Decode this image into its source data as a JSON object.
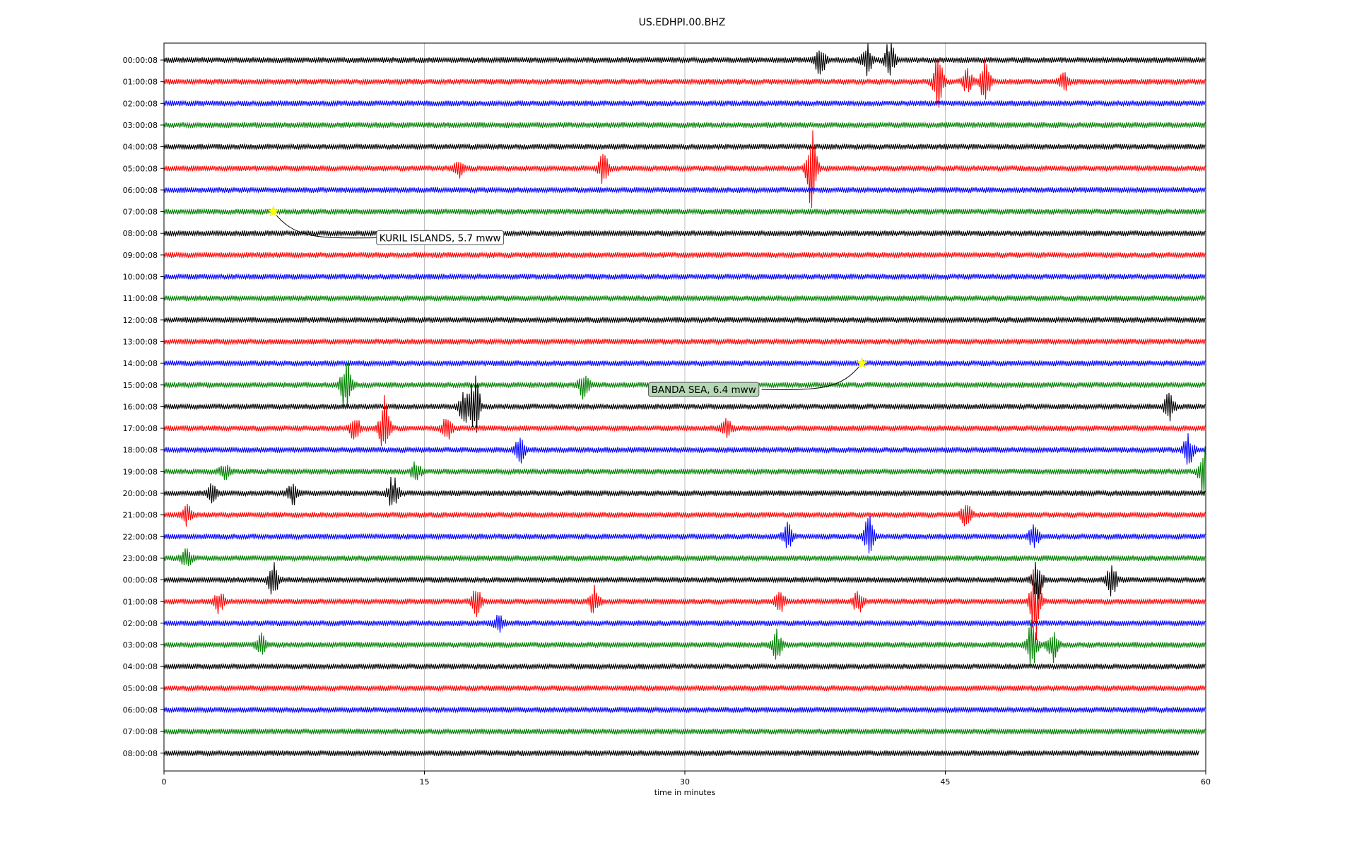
{
  "chart_data": {
    "type": "line",
    "title": "US.EDHPI.00.BHZ",
    "xlabel": "time in minutes",
    "ylabel": "",
    "xlim": [
      0,
      60
    ],
    "x_ticks": [
      "0",
      "15",
      "30",
      "45",
      "60"
    ],
    "grid": "vertical gridlines at x ticks",
    "trace_colors": [
      "#000000",
      "#ff0000",
      "#0000ff",
      "#008000"
    ],
    "star_color": "#ffff00",
    "row_labels": [
      "00:00:08",
      "01:00:08",
      "02:00:08",
      "03:00:08",
      "04:00:08",
      "05:00:08",
      "06:00:08",
      "07:00:08",
      "08:00:08",
      "09:00:08",
      "10:00:08",
      "11:00:08",
      "12:00:08",
      "13:00:08",
      "14:00:08",
      "15:00:08",
      "16:00:08",
      "17:00:08",
      "18:00:08",
      "19:00:08",
      "20:00:08",
      "21:00:08",
      "22:00:08",
      "23:00:08",
      "00:00:08",
      "01:00:08",
      "02:00:08",
      "03:00:08",
      "04:00:08",
      "05:00:08",
      "06:00:08",
      "07:00:08",
      "08:00:08"
    ],
    "events": [
      {
        "label": "KURIL ISLANDS, 5.7 mww",
        "row": 7,
        "minute": 6.3,
        "box_color": "#ffffff"
      },
      {
        "label": "BANDA SEA, 6.4 mww",
        "row": 14,
        "minute": 40.2,
        "box_color": "#b4d7b4"
      }
    ],
    "bursts": [
      {
        "row": 0,
        "minute": 37.8,
        "amp": 1.0
      },
      {
        "row": 0,
        "minute": 40.5,
        "amp": 1.0
      },
      {
        "row": 0,
        "minute": 41.8,
        "amp": 1.2
      },
      {
        "row": 1,
        "minute": 44.6,
        "amp": 1.6
      },
      {
        "row": 1,
        "minute": 46.3,
        "amp": 0.8
      },
      {
        "row": 1,
        "minute": 47.3,
        "amp": 1.3
      },
      {
        "row": 1,
        "minute": 51.8,
        "amp": 0.6
      },
      {
        "row": 5,
        "minute": 17.0,
        "amp": 0.5
      },
      {
        "row": 5,
        "minute": 25.3,
        "amp": 0.9
      },
      {
        "row": 5,
        "minute": 37.3,
        "amp": 2.4
      },
      {
        "row": 15,
        "minute": 10.5,
        "amp": 2.0
      },
      {
        "row": 15,
        "minute": 24.2,
        "amp": 0.8
      },
      {
        "row": 16,
        "minute": 17.3,
        "amp": 1.1
      },
      {
        "row": 16,
        "minute": 17.9,
        "amp": 1.9
      },
      {
        "row": 16,
        "minute": 57.9,
        "amp": 0.9
      },
      {
        "row": 17,
        "minute": 11.0,
        "amp": 0.8
      },
      {
        "row": 17,
        "minute": 12.7,
        "amp": 1.9
      },
      {
        "row": 17,
        "minute": 16.3,
        "amp": 0.7
      },
      {
        "row": 17,
        "minute": 32.4,
        "amp": 0.6
      },
      {
        "row": 18,
        "minute": 20.5,
        "amp": 0.8
      },
      {
        "row": 18,
        "minute": 59.0,
        "amp": 1.0
      },
      {
        "row": 19,
        "minute": 3.5,
        "amp": 0.5
      },
      {
        "row": 19,
        "minute": 14.5,
        "amp": 0.6
      },
      {
        "row": 19,
        "minute": 59.9,
        "amp": 1.5
      },
      {
        "row": 20,
        "minute": 2.8,
        "amp": 0.6
      },
      {
        "row": 20,
        "minute": 7.4,
        "amp": 0.8
      },
      {
        "row": 20,
        "minute": 13.2,
        "amp": 1.1
      },
      {
        "row": 21,
        "minute": 1.3,
        "amp": 0.6
      },
      {
        "row": 21,
        "minute": 46.2,
        "amp": 0.7
      },
      {
        "row": 22,
        "minute": 35.9,
        "amp": 0.8
      },
      {
        "row": 22,
        "minute": 40.6,
        "amp": 1.2
      },
      {
        "row": 22,
        "minute": 50.1,
        "amp": 0.7
      },
      {
        "row": 23,
        "minute": 1.3,
        "amp": 0.6
      },
      {
        "row": 24,
        "minute": 6.3,
        "amp": 1.0
      },
      {
        "row": 24,
        "minute": 50.3,
        "amp": 1.2
      },
      {
        "row": 24,
        "minute": 54.6,
        "amp": 1.0
      },
      {
        "row": 25,
        "minute": 3.2,
        "amp": 0.7
      },
      {
        "row": 25,
        "minute": 18.0,
        "amp": 0.9
      },
      {
        "row": 25,
        "minute": 24.8,
        "amp": 0.9
      },
      {
        "row": 25,
        "minute": 35.5,
        "amp": 0.7
      },
      {
        "row": 25,
        "minute": 40.0,
        "amp": 0.8
      },
      {
        "row": 25,
        "minute": 50.2,
        "amp": 2.4
      },
      {
        "row": 26,
        "minute": 19.3,
        "amp": 0.5
      },
      {
        "row": 27,
        "minute": 5.6,
        "amp": 0.6
      },
      {
        "row": 27,
        "minute": 35.3,
        "amp": 0.9
      },
      {
        "row": 27,
        "minute": 50.0,
        "amp": 1.6
      },
      {
        "row": 27,
        "minute": 51.2,
        "amp": 1.1
      }
    ]
  }
}
